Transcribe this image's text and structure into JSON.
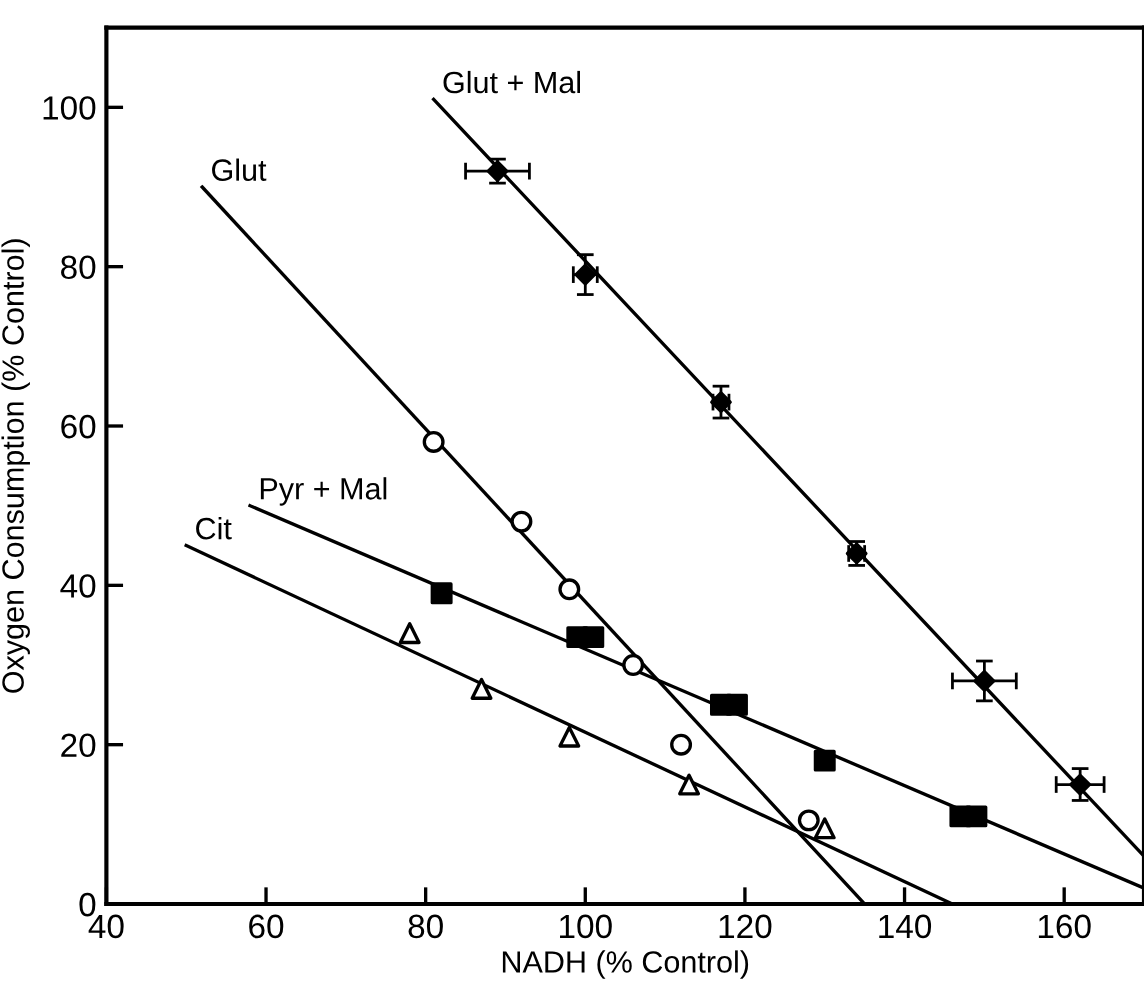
{
  "chart_data": {
    "type": "scatter",
    "xlabel": "NADH (% Control)",
    "ylabel": "Oxygen Consumption (% Control)",
    "xlim": [
      40,
      170
    ],
    "ylim": [
      0,
      110
    ],
    "xticks": [
      40,
      60,
      80,
      100,
      120,
      140,
      160
    ],
    "yticks": [
      0,
      20,
      40,
      60,
      80,
      100
    ],
    "grid": false,
    "legend": false,
    "series": [
      {
        "marker": "diamond",
        "color": "#000000",
        "x": [
          89,
          100,
          117,
          134,
          150,
          162
        ],
        "values": [
          92,
          79,
          63,
          44,
          28,
          15
        ],
        "errors": [
          1.5,
          2.5,
          2,
          1.5,
          2.5,
          2
        ],
        "xerrors": [
          4,
          1.5,
          1,
          1,
          4,
          3
        ]
      },
      {
        "type": "line",
        "name": "Glut + Mal",
        "marker": "none",
        "color": "#000000",
        "x": [
          81,
          170
        ],
        "values": [
          101,
          6
        ]
      },
      {
        "marker": "circle",
        "color": "#000000",
        "x": [
          81,
          92,
          98,
          106,
          112,
          128
        ],
        "values": [
          58,
          48,
          39.5,
          30,
          20,
          10.5
        ]
      },
      {
        "type": "line",
        "name": "Glut",
        "marker": "none",
        "color": "#000000",
        "x": [
          52,
          135
        ],
        "values": [
          90,
          0
        ]
      },
      {
        "marker": "square",
        "color": "#000000",
        "x": [
          82,
          99,
          101,
          117,
          119,
          130,
          147,
          149
        ],
        "values": [
          39,
          33.5,
          33.5,
          25,
          25,
          18,
          11,
          11
        ]
      },
      {
        "type": "line",
        "name": "Pyr + Mal",
        "marker": "none",
        "color": "#000000",
        "x": [
          58,
          170
        ],
        "values": [
          50,
          2
        ]
      },
      {
        "marker": "triangle",
        "color": "#000000",
        "x": [
          78,
          87,
          98,
          113,
          130
        ],
        "values": [
          34,
          27,
          21,
          15,
          9.5
        ]
      },
      {
        "type": "line",
        "name": "Cit",
        "marker": "none",
        "color": "#000000",
        "x": [
          50,
          146
        ],
        "values": [
          45,
          0
        ]
      }
    ]
  }
}
